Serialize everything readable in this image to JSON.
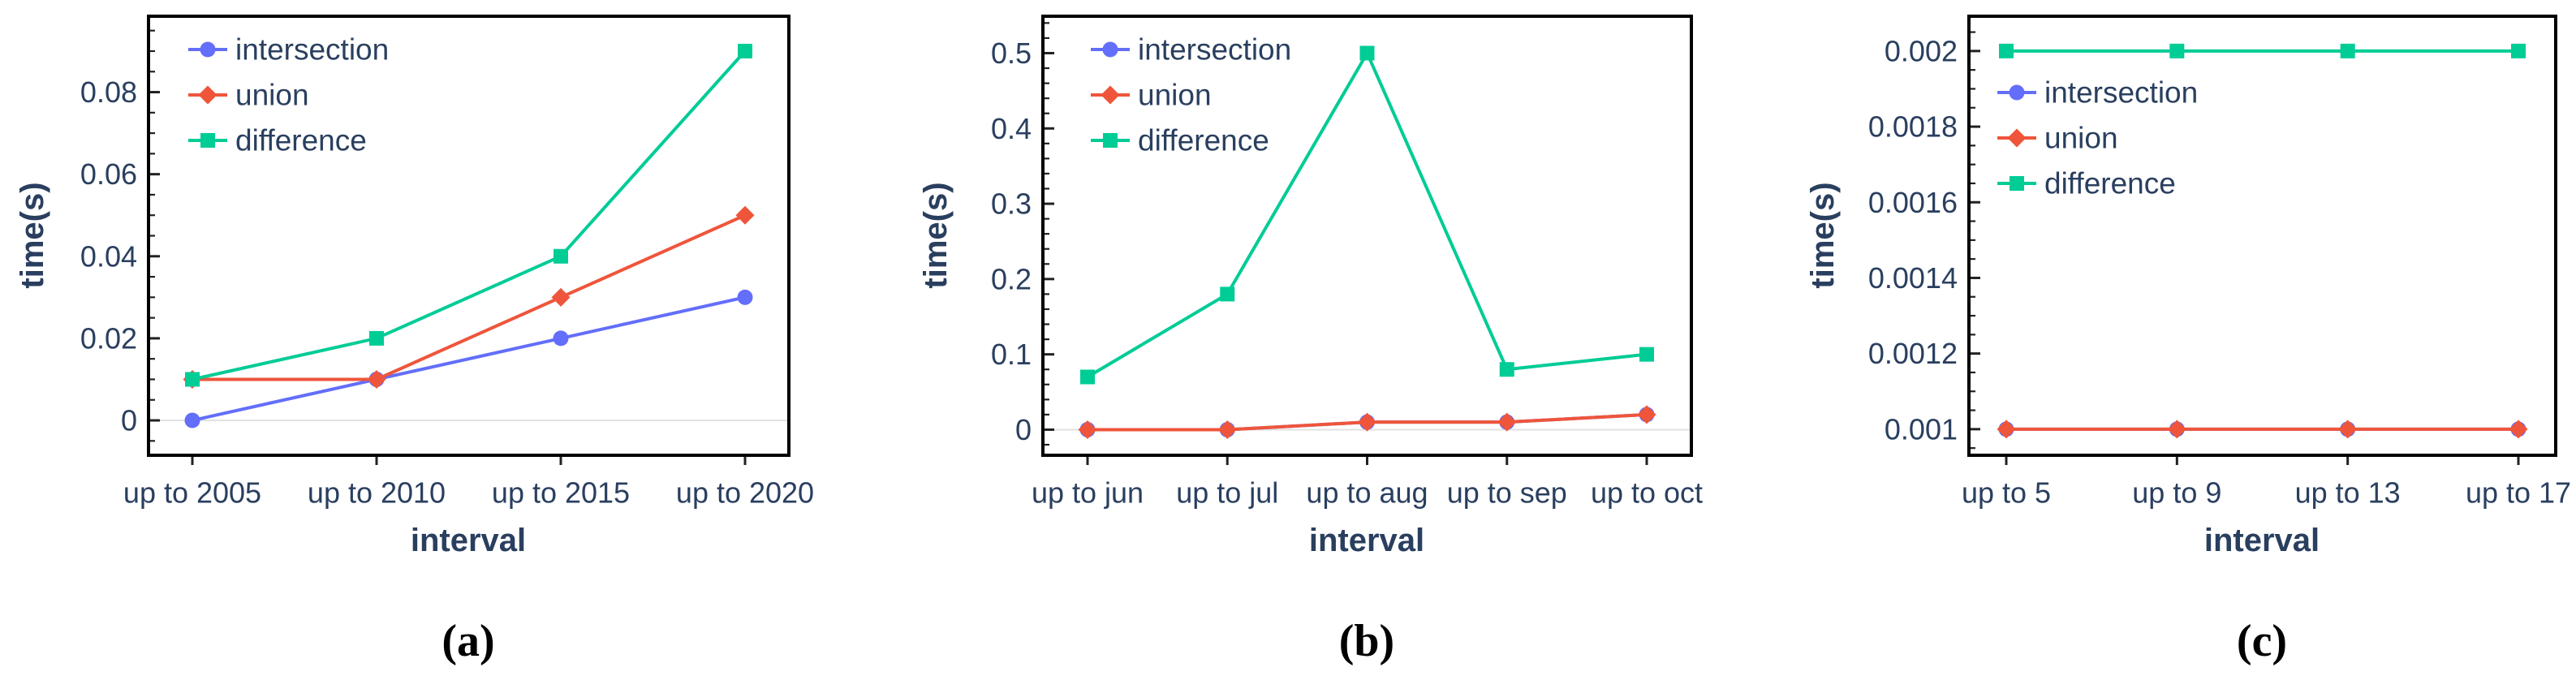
{
  "figure": {
    "background": "#ffffff",
    "text_color": "#2a3f5f",
    "frame_color": "#000000",
    "tick_color": "#222222",
    "zero_line_color": "#e2e2e2"
  },
  "chart_data": [
    {
      "panel": "a",
      "caption": "(a)",
      "type": "line",
      "xlabel": "interval",
      "ylabel": "time(s)",
      "categories": [
        "up to 2005",
        "up to 2010",
        "up to 2015",
        "up to 2020"
      ],
      "series": [
        {
          "name": "intersection",
          "marker": "circle",
          "color": "#636efa",
          "values": [
            0.0,
            0.01,
            0.02,
            0.03
          ]
        },
        {
          "name": "union",
          "marker": "diamond",
          "color": "#ef553b",
          "values": [
            0.01,
            0.01,
            0.03,
            0.05
          ]
        },
        {
          "name": "difference",
          "marker": "square",
          "color": "#00cc96",
          "values": [
            0.01,
            0.02,
            0.04,
            0.09
          ]
        }
      ],
      "ylim": [
        -0.0085,
        0.0985
      ],
      "ytick_values": [
        0,
        0.02,
        0.04,
        0.06,
        0.08
      ],
      "ytick_labels": [
        "0",
        "0.02",
        "0.04",
        "0.06",
        "0.08"
      ],
      "minor_step": 0.005,
      "zero_line": true,
      "grid": false,
      "legend_position": "top-left"
    },
    {
      "panel": "b",
      "caption": "(b)",
      "type": "line",
      "xlabel": "interval",
      "ylabel": "time(s)",
      "categories": [
        "up to jun",
        "up to jul",
        "up to aug",
        "up to sep",
        "up to oct"
      ],
      "series": [
        {
          "name": "intersection",
          "marker": "circle",
          "color": "#636efa",
          "values": [
            0.0,
            0.0,
            0.01,
            0.01,
            0.02
          ]
        },
        {
          "name": "union",
          "marker": "diamond",
          "color": "#ef553b",
          "values": [
            0.0,
            0.0,
            0.01,
            0.01,
            0.02
          ]
        },
        {
          "name": "difference",
          "marker": "square",
          "color": "#00cc96",
          "values": [
            0.07,
            0.18,
            0.5,
            0.08,
            0.1
          ]
        }
      ],
      "ylim": [
        -0.034,
        0.549
      ],
      "ytick_values": [
        0,
        0.1,
        0.2,
        0.3,
        0.4,
        0.5
      ],
      "ytick_labels": [
        "0",
        "0.1",
        "0.2",
        "0.3",
        "0.4",
        "0.5"
      ],
      "minor_step": 0.02,
      "zero_line": true,
      "grid": false,
      "legend_position": "top-left"
    },
    {
      "panel": "c",
      "caption": "(c)",
      "type": "line",
      "xlabel": "interval",
      "ylabel": "time(s)",
      "categories": [
        "up to 5",
        "up to 9",
        "up to 13",
        "up to 17"
      ],
      "series": [
        {
          "name": "intersection",
          "marker": "circle",
          "color": "#636efa",
          "values": [
            0.001,
            0.001,
            0.001,
            0.001
          ]
        },
        {
          "name": "union",
          "marker": "diamond",
          "color": "#ef553b",
          "values": [
            0.001,
            0.001,
            0.001,
            0.001
          ]
        },
        {
          "name": "difference",
          "marker": "square",
          "color": "#00cc96",
          "values": [
            0.002,
            0.002,
            0.002,
            0.002
          ]
        }
      ],
      "ylim": [
        0.000931,
        0.002092
      ],
      "ytick_values": [
        0.001,
        0.0012,
        0.0014,
        0.0016,
        0.0018,
        0.002
      ],
      "ytick_labels": [
        "0.001",
        "0.0012",
        "0.0014",
        "0.0016",
        "0.0018",
        "0.002"
      ],
      "minor_step": 5e-05,
      "zero_line": false,
      "grid": false,
      "legend_position": "top-left-lower"
    }
  ]
}
